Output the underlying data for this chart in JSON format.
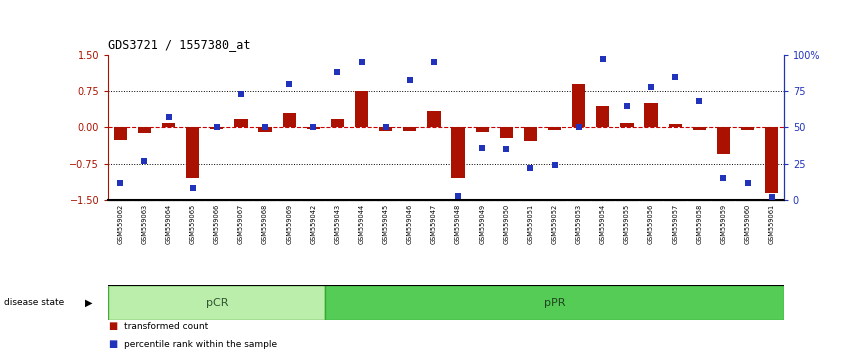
{
  "title": "GDS3721 / 1557380_at",
  "samples": [
    "GSM559062",
    "GSM559063",
    "GSM559064",
    "GSM559065",
    "GSM559066",
    "GSM559067",
    "GSM559068",
    "GSM559069",
    "GSM559042",
    "GSM559043",
    "GSM559044",
    "GSM559045",
    "GSM559046",
    "GSM559047",
    "GSM559048",
    "GSM559049",
    "GSM559050",
    "GSM559051",
    "GSM559052",
    "GSM559053",
    "GSM559054",
    "GSM559055",
    "GSM559056",
    "GSM559057",
    "GSM559058",
    "GSM559059",
    "GSM559060",
    "GSM559061"
  ],
  "bar_values": [
    -0.25,
    -0.12,
    0.1,
    -1.05,
    -0.03,
    0.18,
    -0.1,
    0.3,
    -0.03,
    0.18,
    0.75,
    -0.08,
    -0.08,
    0.35,
    -1.05,
    -0.1,
    -0.22,
    -0.28,
    -0.05,
    0.9,
    0.45,
    0.1,
    0.5,
    0.08,
    -0.05,
    -0.55,
    -0.05,
    -1.35
  ],
  "dot_values": [
    12,
    27,
    57,
    8,
    50,
    73,
    50,
    80,
    50,
    88,
    95,
    50,
    83,
    95,
    3,
    36,
    35,
    22,
    24,
    50,
    97,
    65,
    78,
    85,
    68,
    15,
    12,
    2
  ],
  "pcr_count": 9,
  "ppr_count": 19,
  "group_labels": [
    "pCR",
    "pPR"
  ],
  "group_colors": [
    "#bbeeaa",
    "#55cc55"
  ],
  "group_edge_colors": [
    "#44aa33",
    "#33aa33"
  ],
  "bar_color": "#aa1100",
  "dot_color": "#2233bb",
  "ylim": [
    -1.5,
    1.5
  ],
  "y2lim": [
    0,
    100
  ],
  "y_ticks": [
    -1.5,
    -0.75,
    0,
    0.75,
    1.5
  ],
  "y2_ticks": [
    0,
    25,
    50,
    75,
    100
  ],
  "hline_color": "#cc0000",
  "dotted_color": "#000000",
  "tick_area_color": "#c8c8c8"
}
